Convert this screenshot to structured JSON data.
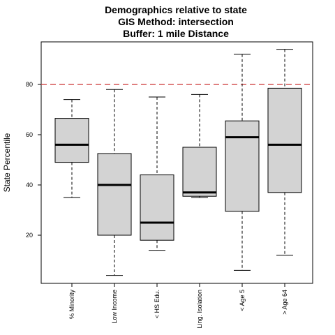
{
  "chart_data": {
    "type": "boxplot",
    "title": [
      "Demographics relative to state",
      "GIS Method: intersection",
      "Buffer: 1 mile Distance"
    ],
    "xlabel": "",
    "ylabel": "State Percentile",
    "ylim": [
      0,
      96
    ],
    "yticks": [
      20,
      40,
      60,
      80
    ],
    "reference_line": {
      "value": 80,
      "color": "#cc3333",
      "style": "dashed"
    },
    "box_fill": "#d3d3d3",
    "categories": [
      "% Minority",
      "Low Income",
      "< HS Edu.",
      "Ling. Isolation",
      "< Age 5",
      "> Age 64"
    ],
    "boxes": [
      {
        "label": "% Minority",
        "whisker_low": 35,
        "q1": 49,
        "median": 56,
        "q3": 66.5,
        "whisker_high": 74
      },
      {
        "label": "Low Income",
        "whisker_low": 4,
        "q1": 20,
        "median": 40,
        "q3": 52.5,
        "whisker_high": 78
      },
      {
        "label": "< HS Edu.",
        "whisker_low": 14,
        "q1": 18,
        "median": 25,
        "q3": 44,
        "whisker_high": 75
      },
      {
        "label": "Ling. Isolation",
        "whisker_low": 35,
        "q1": 35.5,
        "median": 37,
        "q3": 55,
        "whisker_high": 76
      },
      {
        "label": "< Age 5",
        "whisker_low": 6,
        "q1": 29.5,
        "median": 59,
        "q3": 65.5,
        "whisker_high": 92
      },
      {
        "label": "> Age 64",
        "whisker_low": 12,
        "q1": 37,
        "median": 56,
        "q3": 78.5,
        "whisker_high": 94
      }
    ]
  }
}
